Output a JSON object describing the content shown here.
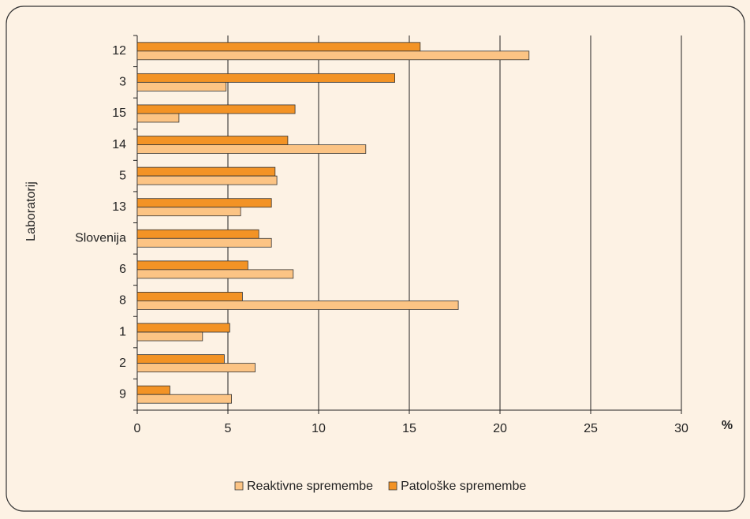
{
  "chart_data": {
    "type": "bar",
    "orientation": "horizontal",
    "y_label": "Laboratorij",
    "x_label": "%",
    "categories": [
      "12",
      "3",
      "15",
      "14",
      "5",
      "13",
      "Slovenija",
      "6",
      "8",
      "1",
      "2",
      "9"
    ],
    "series": [
      {
        "name": "Reaktivne spremembe",
        "color": "#fcc484",
        "values": [
          21.6,
          4.9,
          2.3,
          12.6,
          7.7,
          5.7,
          7.4,
          8.6,
          17.7,
          3.6,
          6.5,
          5.2
        ]
      },
      {
        "name": "Patološke spremembe",
        "color": "#f39325",
        "values": [
          15.6,
          14.2,
          8.7,
          8.3,
          7.6,
          7.4,
          6.7,
          6.1,
          5.8,
          5.1,
          4.8,
          1.8
        ]
      }
    ],
    "xlim": [
      0,
      30
    ],
    "xticks": [
      0,
      5,
      10,
      15,
      20,
      25,
      30
    ],
    "grid": true
  }
}
